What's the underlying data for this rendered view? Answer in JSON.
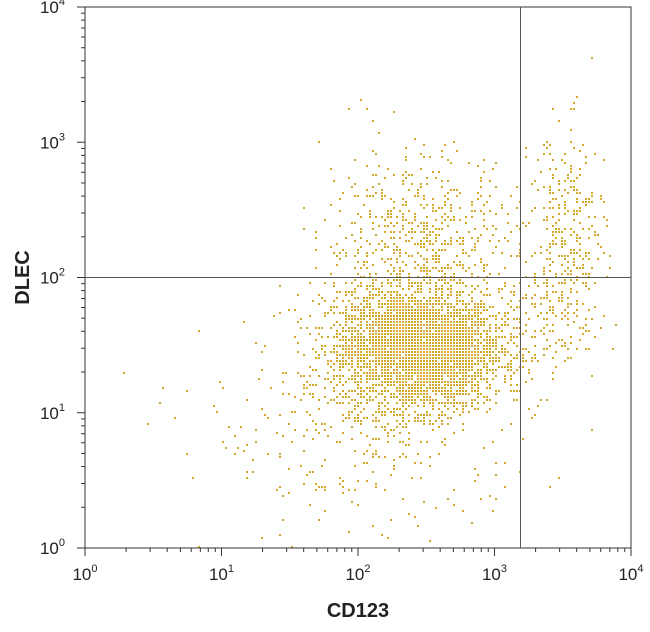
{
  "chart_data": {
    "type": "scatter",
    "title": "",
    "xlabel": "CD123",
    "ylabel": "DLEC",
    "x_scale": "log",
    "y_scale": "log",
    "xlim": [
      1,
      10000
    ],
    "ylim": [
      1,
      10000
    ],
    "x_ticks": [
      {
        "base": "10",
        "exp": "0",
        "value": 1
      },
      {
        "base": "10",
        "exp": "1",
        "value": 10
      },
      {
        "base": "10",
        "exp": "2",
        "value": 100
      },
      {
        "base": "10",
        "exp": "3",
        "value": 1000
      },
      {
        "base": "10",
        "exp": "4",
        "value": 10000
      }
    ],
    "y_ticks": [
      {
        "base": "10",
        "exp": "0",
        "value": 1
      },
      {
        "base": "10",
        "exp": "1",
        "value": 10
      },
      {
        "base": "10",
        "exp": "2",
        "value": 100
      },
      {
        "base": "10",
        "exp": "3",
        "value": 1000
      },
      {
        "base": "10",
        "exp": "4",
        "value": 10000
      }
    ],
    "quadrant_gates": {
      "x": 1550,
      "y": 100
    },
    "grid": false,
    "point_color": "#d4a82a",
    "line_color": "#555555",
    "populations": [
      {
        "center_x": 270,
        "center_y": 30,
        "spread_x_decades": 0.3,
        "spread_y_decades": 0.22,
        "count": 3800
      },
      {
        "center_x": 280,
        "center_y": 180,
        "spread_x_decades": 0.35,
        "spread_y_decades": 0.35,
        "count": 650
      },
      {
        "center_x": 120,
        "center_y": 8,
        "spread_x_decades": 0.6,
        "spread_y_decades": 0.45,
        "count": 350
      },
      {
        "center_x": 3400,
        "center_y": 200,
        "spread_x_decades": 0.14,
        "spread_y_decades": 0.4,
        "count": 300
      },
      {
        "center_x": 2500,
        "center_y": 50,
        "spread_x_decades": 0.2,
        "spread_y_decades": 0.2,
        "count": 120
      }
    ]
  }
}
